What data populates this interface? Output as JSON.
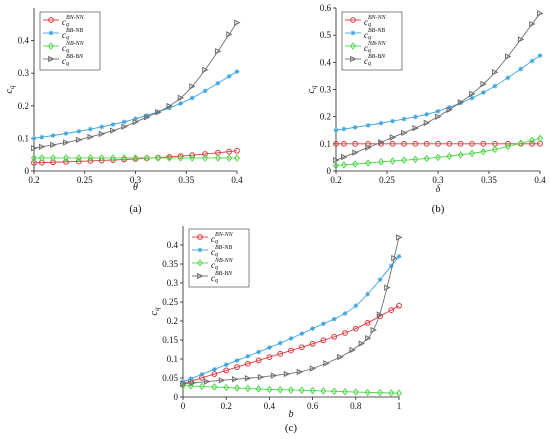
{
  "colors": {
    "red": "#e0383e",
    "blue": "#3ea5dc",
    "green": "#4fd94a",
    "gray": "#6e6e6e"
  },
  "chart_data": [
    {
      "id": "a",
      "panel_label": "(a)",
      "type": "line",
      "xlabel": "θ",
      "ylabel": "c",
      "ylabel_sub": "q",
      "xlim": [
        0.2,
        0.4
      ],
      "ylim": [
        0,
        0.5
      ],
      "xticks": [
        "0.2",
        "0.25",
        "0.3",
        "0.35",
        "0.4"
      ],
      "yticks": [
        "0",
        "0.1",
        "0.2",
        "0.3",
        "0.4"
      ],
      "legend_position": "top-left",
      "grid": false,
      "series": [
        {
          "label": "c",
          "label_sub": "q",
          "label_sup": "BN-NN",
          "color": "red",
          "marker": "circle",
          "x": [
            0.2,
            0.25,
            0.3,
            0.35,
            0.4
          ],
          "y": [
            0.025,
            0.03,
            0.037,
            0.047,
            0.062
          ]
        },
        {
          "label": "c",
          "label_sub": "q",
          "label_sup": "BB-NB",
          "color": "blue",
          "marker": "star",
          "x": [
            0.2,
            0.25,
            0.3,
            0.35,
            0.4
          ],
          "y": [
            0.1,
            0.125,
            0.16,
            0.215,
            0.305
          ]
        },
        {
          "label": "c",
          "label_sub": "q",
          "label_sup": "NB-NN",
          "color": "green",
          "marker": "diamond",
          "x": [
            0.2,
            0.25,
            0.3,
            0.35,
            0.4
          ],
          "y": [
            0.04,
            0.04,
            0.04,
            0.04,
            0.04
          ]
        },
        {
          "label": "c",
          "label_sub": "q",
          "label_sup": "BB-BN",
          "color": "gray",
          "marker": "triangle",
          "x": [
            0.2,
            0.25,
            0.3,
            0.35,
            0.4
          ],
          "y": [
            0.07,
            0.1,
            0.15,
            0.24,
            0.455
          ]
        }
      ]
    },
    {
      "id": "b",
      "panel_label": "(b)",
      "type": "line",
      "xlabel": "δ",
      "ylabel": "c",
      "ylabel_sub": "q",
      "xlim": [
        0.2,
        0.4
      ],
      "ylim": [
        0,
        0.6
      ],
      "xticks": [
        "0.2",
        "0.25",
        "0.3",
        "0.35",
        "0.4"
      ],
      "yticks": [
        "0",
        "0.1",
        "0.2",
        "0.3",
        "0.4",
        "0.5",
        "0.6"
      ],
      "legend_position": "top-left",
      "grid": false,
      "series": [
        {
          "label": "c",
          "label_sub": "q",
          "label_sup": "BN-NN",
          "color": "red",
          "marker": "circle",
          "x": [
            0.2,
            0.25,
            0.3,
            0.35,
            0.4
          ],
          "y": [
            0.1,
            0.1,
            0.1,
            0.1,
            0.1
          ]
        },
        {
          "label": "c",
          "label_sub": "q",
          "label_sup": "BB-NB",
          "color": "blue",
          "marker": "star",
          "x": [
            0.2,
            0.25,
            0.3,
            0.35,
            0.4
          ],
          "y": [
            0.15,
            0.18,
            0.22,
            0.3,
            0.425
          ]
        },
        {
          "label": "c",
          "label_sub": "q",
          "label_sup": "NB-NN",
          "color": "green",
          "marker": "diamond",
          "x": [
            0.2,
            0.25,
            0.3,
            0.35,
            0.4
          ],
          "y": [
            0.02,
            0.035,
            0.05,
            0.075,
            0.12
          ]
        },
        {
          "label": "c",
          "label_sub": "q",
          "label_sup": "BB-BN",
          "color": "gray",
          "marker": "triangle",
          "x": [
            0.2,
            0.25,
            0.3,
            0.35,
            0.4
          ],
          "y": [
            0.04,
            0.115,
            0.2,
            0.34,
            0.58
          ]
        }
      ]
    },
    {
      "id": "c",
      "panel_label": "(c)",
      "type": "line",
      "xlabel": "b",
      "ylabel": "c",
      "ylabel_sub": "q",
      "xlim": [
        0,
        1
      ],
      "ylim": [
        0,
        0.45
      ],
      "xticks": [
        "0",
        "0.2",
        "0.4",
        "0.6",
        "0.8",
        "1"
      ],
      "yticks": [
        "0",
        "0.05",
        "0.1",
        "0.15",
        "0.2",
        "0.25",
        "0.3",
        "0.35",
        "0.4"
      ],
      "legend_position": "top-left",
      "grid": false,
      "series": [
        {
          "label": "c",
          "label_sub": "q",
          "label_sup": "BN-NN",
          "color": "red",
          "marker": "circle",
          "x": [
            0,
            0.2,
            0.4,
            0.6,
            0.8,
            1.0
          ],
          "y": [
            0.035,
            0.07,
            0.105,
            0.14,
            0.18,
            0.24
          ]
        },
        {
          "label": "c",
          "label_sub": "q",
          "label_sup": "BB-NB",
          "color": "blue",
          "marker": "star",
          "x": [
            0,
            0.2,
            0.4,
            0.6,
            0.8,
            1.0
          ],
          "y": [
            0.04,
            0.085,
            0.13,
            0.18,
            0.24,
            0.37
          ]
        },
        {
          "label": "c",
          "label_sub": "q",
          "label_sup": "NB-NN",
          "color": "green",
          "marker": "diamond",
          "x": [
            0,
            0.2,
            0.4,
            0.6,
            0.8,
            1.0
          ],
          "y": [
            0.03,
            0.025,
            0.02,
            0.017,
            0.013,
            0.01
          ]
        },
        {
          "label": "c",
          "label_sub": "q",
          "label_sup": "BB-BN",
          "color": "gray",
          "marker": "triangle",
          "x": [
            0,
            0.2,
            0.4,
            0.6,
            0.8,
            0.9,
            1.0
          ],
          "y": [
            0.035,
            0.045,
            0.055,
            0.075,
            0.13,
            0.2,
            0.42
          ]
        }
      ]
    }
  ]
}
